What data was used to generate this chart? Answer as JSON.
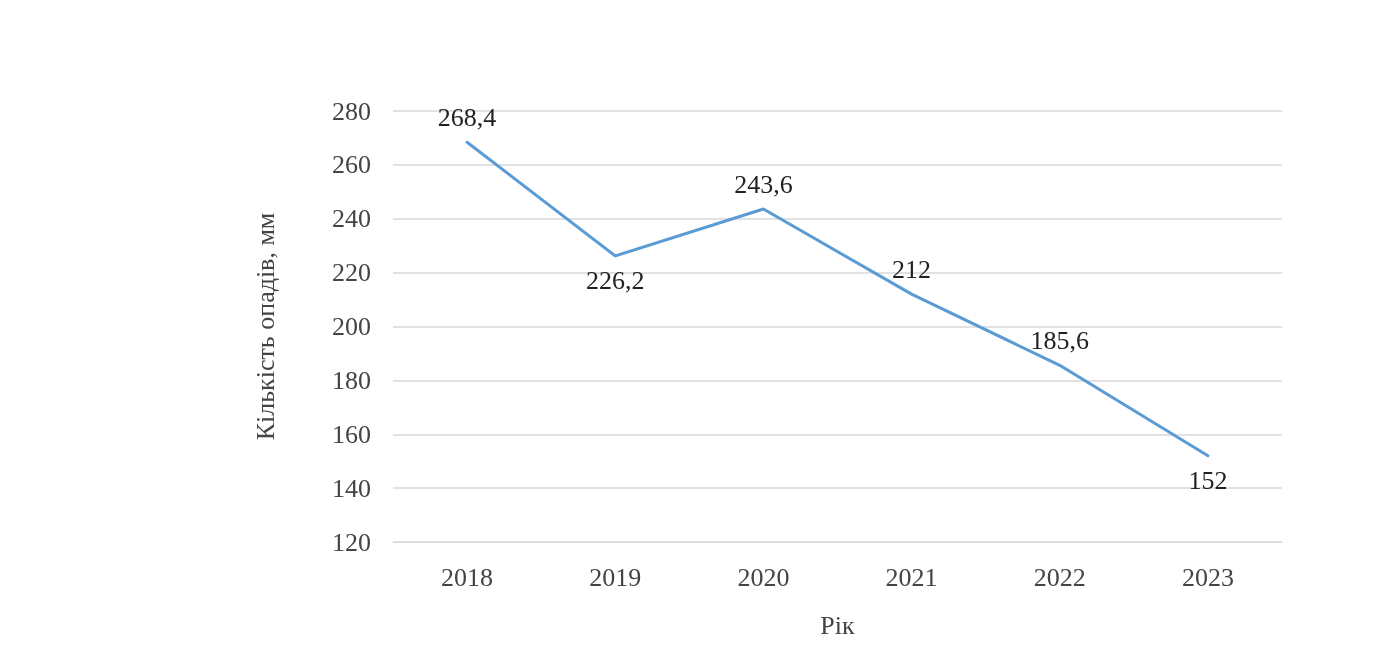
{
  "chart_data": {
    "type": "line",
    "xlabel": "Рік",
    "ylabel": "Кількість опадів, мм",
    "categories": [
      "2018",
      "2019",
      "2020",
      "2021",
      "2022",
      "2023"
    ],
    "series": [
      {
        "color": "#5b9bd5",
        "values": [
          268.4,
          226.2,
          243.6,
          212,
          185.6,
          152
        ],
        "value_labels": [
          "268,4",
          "226,2",
          "243,6",
          "212",
          "185,6",
          "152"
        ]
      }
    ],
    "ylim": [
      120,
      280
    ],
    "yticks": [
      120,
      140,
      160,
      180,
      200,
      220,
      240,
      260,
      280
    ],
    "grid": "y",
    "marker": "none",
    "line_style": "solid"
  }
}
